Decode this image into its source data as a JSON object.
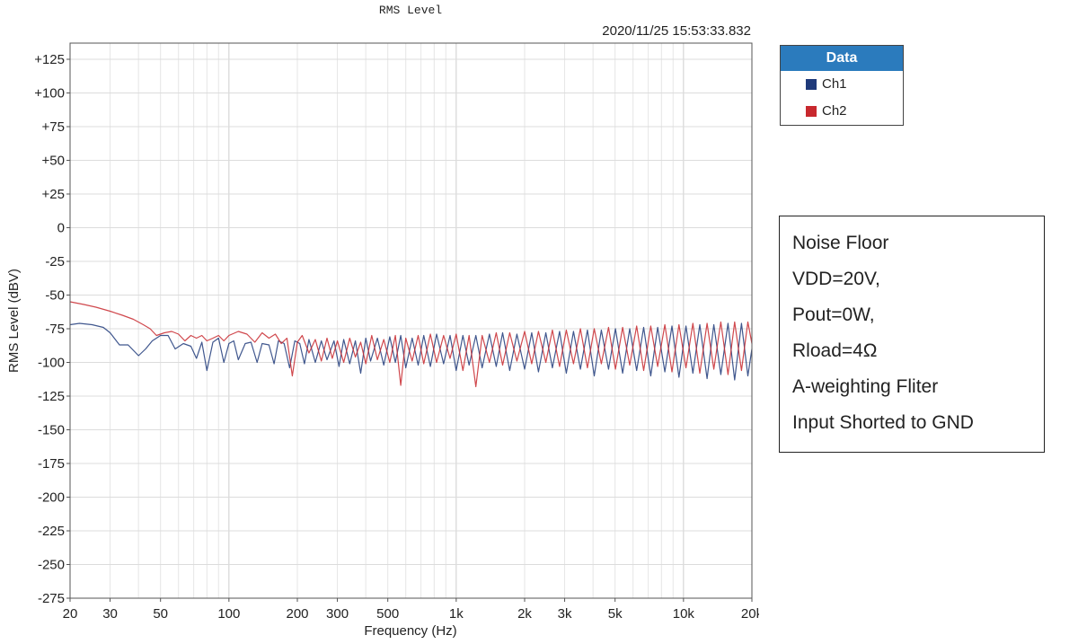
{
  "chart_data": {
    "type": "line",
    "title": "RMS Level",
    "timestamp": "2020/11/25 15:53:33.832",
    "xlabel": "Frequency (Hz)",
    "ylabel": "RMS Level (dBV)",
    "x_scale": "log",
    "xlim": [
      20,
      20000
    ],
    "ylim": [
      -275,
      137
    ],
    "grid": true,
    "legend_position": "right",
    "legend_title": "Data",
    "x_ticks": [
      {
        "value": 20,
        "label": "20"
      },
      {
        "value": 30,
        "label": "30"
      },
      {
        "value": 50,
        "label": "50"
      },
      {
        "value": 100,
        "label": "100"
      },
      {
        "value": 200,
        "label": "200"
      },
      {
        "value": 300,
        "label": "300"
      },
      {
        "value": 500,
        "label": "500"
      },
      {
        "value": 1000,
        "label": "1k"
      },
      {
        "value": 2000,
        "label": "2k"
      },
      {
        "value": 3000,
        "label": "3k"
      },
      {
        "value": 5000,
        "label": "5k"
      },
      {
        "value": 10000,
        "label": "10k"
      },
      {
        "value": 20000,
        "label": "20k"
      }
    ],
    "y_ticks": [
      {
        "value": 125,
        "label": "+125"
      },
      {
        "value": 100,
        "label": "+100"
      },
      {
        "value": 75,
        "label": "+75"
      },
      {
        "value": 50,
        "label": "+50"
      },
      {
        "value": 25,
        "label": "+25"
      },
      {
        "value": 0,
        "label": "0"
      },
      {
        "value": -25,
        "label": "-25"
      },
      {
        "value": -50,
        "label": "-50"
      },
      {
        "value": -75,
        "label": "-75"
      },
      {
        "value": -100,
        "label": "-100"
      },
      {
        "value": -125,
        "label": "-125"
      },
      {
        "value": -150,
        "label": "-150"
      },
      {
        "value": -175,
        "label": "-175"
      },
      {
        "value": -200,
        "label": "-200"
      },
      {
        "value": -225,
        "label": "-225"
      },
      {
        "value": -250,
        "label": "-250"
      },
      {
        "value": -275,
        "label": "-275"
      }
    ],
    "series": [
      {
        "name": "Ch1",
        "color": "#1f3a7a",
        "points": [
          [
            20,
            -72
          ],
          [
            22,
            -71
          ],
          [
            25,
            -72
          ],
          [
            28,
            -74
          ],
          [
            30,
            -78
          ],
          [
            33,
            -87
          ],
          [
            36,
            -87
          ],
          [
            40,
            -95
          ],
          [
            43,
            -90
          ],
          [
            46,
            -84
          ],
          [
            50,
            -80
          ],
          [
            54,
            -80
          ],
          [
            58,
            -90
          ],
          [
            63,
            -86
          ],
          [
            68,
            -88
          ],
          [
            72,
            -97
          ],
          [
            76,
            -85
          ],
          [
            80,
            -106
          ],
          [
            85,
            -85
          ],
          [
            90,
            -82
          ],
          [
            95,
            -100
          ],
          [
            100,
            -86
          ],
          [
            105,
            -84
          ],
          [
            110,
            -98
          ],
          [
            118,
            -86
          ],
          [
            125,
            -85
          ],
          [
            133,
            -100
          ],
          [
            140,
            -86
          ],
          [
            150,
            -87
          ],
          [
            158,
            -101
          ],
          [
            165,
            -84
          ],
          [
            175,
            -86
          ],
          [
            185,
            -104
          ],
          [
            195,
            -84
          ],
          [
            205,
            -86
          ],
          [
            215,
            -101
          ],
          [
            225,
            -83
          ],
          [
            240,
            -100
          ],
          [
            255,
            -84
          ],
          [
            270,
            -98
          ],
          [
            290,
            -84
          ],
          [
            305,
            -103
          ],
          [
            320,
            -83
          ],
          [
            340,
            -101
          ],
          [
            360,
            -84
          ],
          [
            380,
            -108
          ],
          [
            400,
            -82
          ],
          [
            420,
            -99
          ],
          [
            450,
            -82
          ],
          [
            480,
            -102
          ],
          [
            510,
            -81
          ],
          [
            540,
            -100
          ],
          [
            570,
            -80
          ],
          [
            600,
            -104
          ],
          [
            640,
            -82
          ],
          [
            680,
            -102
          ],
          [
            720,
            -80
          ],
          [
            770,
            -103
          ],
          [
            820,
            -79
          ],
          [
            880,
            -101
          ],
          [
            940,
            -80
          ],
          [
            1000,
            -106
          ],
          [
            1070,
            -80
          ],
          [
            1140,
            -102
          ],
          [
            1220,
            -80
          ],
          [
            1300,
            -104
          ],
          [
            1400,
            -79
          ],
          [
            1500,
            -103
          ],
          [
            1600,
            -78
          ],
          [
            1720,
            -106
          ],
          [
            1850,
            -79
          ],
          [
            2000,
            -105
          ],
          [
            2150,
            -78
          ],
          [
            2300,
            -107
          ],
          [
            2480,
            -78
          ],
          [
            2650,
            -104
          ],
          [
            2850,
            -77
          ],
          [
            3050,
            -108
          ],
          [
            3280,
            -77
          ],
          [
            3520,
            -105
          ],
          [
            3780,
            -76
          ],
          [
            4050,
            -110
          ],
          [
            4350,
            -76
          ],
          [
            4680,
            -105
          ],
          [
            5020,
            -75
          ],
          [
            5400,
            -108
          ],
          [
            5800,
            -75
          ],
          [
            6220,
            -106
          ],
          [
            6680,
            -74
          ],
          [
            7180,
            -110
          ],
          [
            7700,
            -74
          ],
          [
            8280,
            -107
          ],
          [
            8900,
            -73
          ],
          [
            9550,
            -111
          ],
          [
            10250,
            -73
          ],
          [
            11000,
            -108
          ],
          [
            11800,
            -72
          ],
          [
            12700,
            -112
          ],
          [
            13600,
            -72
          ],
          [
            14600,
            -109
          ],
          [
            15700,
            -71
          ],
          [
            16800,
            -113
          ],
          [
            18000,
            -71
          ],
          [
            19200,
            -110
          ],
          [
            20000,
            -90
          ]
        ]
      },
      {
        "name": "Ch2",
        "color": "#c8282e",
        "points": [
          [
            20,
            -55
          ],
          [
            23,
            -57
          ],
          [
            26,
            -59
          ],
          [
            30,
            -62
          ],
          [
            34,
            -65
          ],
          [
            38,
            -68
          ],
          [
            42,
            -72
          ],
          [
            45,
            -75
          ],
          [
            48,
            -80
          ],
          [
            52,
            -78
          ],
          [
            56,
            -77
          ],
          [
            60,
            -79
          ],
          [
            64,
            -84
          ],
          [
            68,
            -80
          ],
          [
            72,
            -82
          ],
          [
            76,
            -80
          ],
          [
            80,
            -84
          ],
          [
            85,
            -82
          ],
          [
            90,
            -80
          ],
          [
            95,
            -84
          ],
          [
            100,
            -80
          ],
          [
            110,
            -77
          ],
          [
            120,
            -79
          ],
          [
            130,
            -85
          ],
          [
            140,
            -78
          ],
          [
            150,
            -82
          ],
          [
            160,
            -79
          ],
          [
            170,
            -86
          ],
          [
            180,
            -82
          ],
          [
            190,
            -110
          ],
          [
            200,
            -85
          ],
          [
            210,
            -80
          ],
          [
            225,
            -93
          ],
          [
            240,
            -83
          ],
          [
            255,
            -99
          ],
          [
            270,
            -82
          ],
          [
            285,
            -97
          ],
          [
            300,
            -84
          ],
          [
            320,
            -100
          ],
          [
            340,
            -82
          ],
          [
            360,
            -96
          ],
          [
            380,
            -85
          ],
          [
            400,
            -101
          ],
          [
            425,
            -80
          ],
          [
            450,
            -98
          ],
          [
            480,
            -83
          ],
          [
            510,
            -100
          ],
          [
            540,
            -80
          ],
          [
            570,
            -117
          ],
          [
            600,
            -82
          ],
          [
            640,
            -99
          ],
          [
            680,
            -80
          ],
          [
            720,
            -101
          ],
          [
            770,
            -79
          ],
          [
            820,
            -100
          ],
          [
            880,
            -80
          ],
          [
            940,
            -97
          ],
          [
            1000,
            -79
          ],
          [
            1070,
            -106
          ],
          [
            1140,
            -80
          ],
          [
            1220,
            -118
          ],
          [
            1300,
            -80
          ],
          [
            1400,
            -100
          ],
          [
            1500,
            -78
          ],
          [
            1600,
            -102
          ],
          [
            1720,
            -78
          ],
          [
            1850,
            -99
          ],
          [
            2000,
            -77
          ],
          [
            2150,
            -101
          ],
          [
            2300,
            -77
          ],
          [
            2480,
            -100
          ],
          [
            2650,
            -76
          ],
          [
            2850,
            -103
          ],
          [
            3050,
            -76
          ],
          [
            3280,
            -101
          ],
          [
            3520,
            -75
          ],
          [
            3780,
            -104
          ],
          [
            4050,
            -75
          ],
          [
            4350,
            -101
          ],
          [
            4680,
            -74
          ],
          [
            5020,
            -105
          ],
          [
            5400,
            -74
          ],
          [
            5800,
            -102
          ],
          [
            6220,
            -73
          ],
          [
            6680,
            -106
          ],
          [
            7180,
            -73
          ],
          [
            7700,
            -103
          ],
          [
            8280,
            -72
          ],
          [
            8900,
            -107
          ],
          [
            9550,
            -72
          ],
          [
            10250,
            -104
          ],
          [
            11000,
            -71
          ],
          [
            11800,
            -108
          ],
          [
            12700,
            -71
          ],
          [
            13600,
            -105
          ],
          [
            14600,
            -70
          ],
          [
            15700,
            -109
          ],
          [
            16800,
            -70
          ],
          [
            18000,
            -106
          ],
          [
            19200,
            -70
          ],
          [
            20000,
            -86
          ]
        ]
      }
    ]
  },
  "note": {
    "lines": [
      "Noise Floor",
      "VDD=20V,",
      "Pout=0W,",
      "Rload=4Ω",
      "A-weighting Fliter",
      "Input Shorted to GND"
    ]
  }
}
